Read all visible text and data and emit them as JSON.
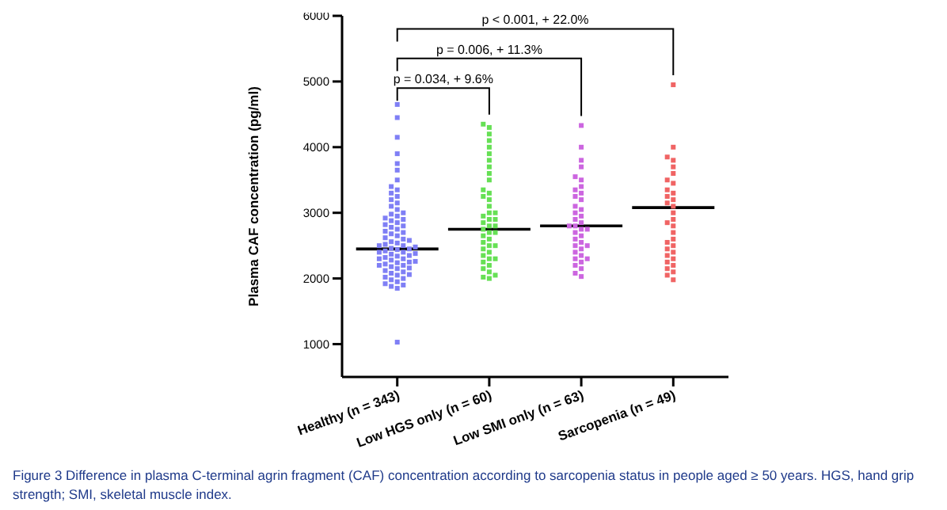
{
  "chart_data": {
    "type": "scatter",
    "ylabel": "Plasma CAF concentration (pg/ml)",
    "categories": [
      "Healthy (n = 343)",
      "Low HGS only (n = 60)",
      "Low SMI only (n = 63)",
      "Sarcopenia (n = 49)"
    ],
    "ylim": [
      500,
      6000
    ],
    "yticks": [
      1000,
      2000,
      3000,
      4000,
      5000,
      6000
    ],
    "marker": "square",
    "series": [
      {
        "color": "#7f7ff5",
        "x": [
          "Healthy (n = 343)",
          "Healthy (n = 343)",
          "Healthy (n = 343)",
          "Healthy (n = 343)",
          "Healthy (n = 343)",
          "Healthy (n = 343)",
          "Healthy (n = 343)",
          "Healthy (n = 343)",
          "Healthy (n = 343)",
          "Healthy (n = 343)",
          "Healthy (n = 343)",
          "Healthy (n = 343)",
          "Healthy (n = 343)",
          "Healthy (n = 343)",
          "Healthy (n = 343)",
          "Healthy (n = 343)",
          "Healthy (n = 343)",
          "Healthy (n = 343)",
          "Healthy (n = 343)",
          "Healthy (n = 343)",
          "Healthy (n = 343)",
          "Healthy (n = 343)",
          "Healthy (n = 343)",
          "Healthy (n = 343)",
          "Healthy (n = 343)",
          "Healthy (n = 343)",
          "Healthy (n = 343)",
          "Healthy (n = 343)",
          "Healthy (n = 343)",
          "Healthy (n = 343)",
          "Healthy (n = 343)",
          "Healthy (n = 343)",
          "Healthy (n = 343)",
          "Healthy (n = 343)",
          "Healthy (n = 343)",
          "Healthy (n = 343)",
          "Healthy (n = 343)",
          "Healthy (n = 343)",
          "Healthy (n = 343)",
          "Healthy (n = 343)",
          "Healthy (n = 343)",
          "Healthy (n = 343)",
          "Healthy (n = 343)",
          "Healthy (n = 343)",
          "Healthy (n = 343)",
          "Healthy (n = 343)",
          "Healthy (n = 343)",
          "Healthy (n = 343)",
          "Healthy (n = 343)",
          "Healthy (n = 343)",
          "Healthy (n = 343)",
          "Healthy (n = 343)",
          "Healthy (n = 343)",
          "Healthy (n = 343)",
          "Healthy (n = 343)",
          "Healthy (n = 343)",
          "Healthy (n = 343)",
          "Healthy (n = 343)",
          "Healthy (n = 343)",
          "Healthy (n = 343)",
          "Healthy (n = 343)",
          "Healthy (n = 343)",
          "Healthy (n = 343)",
          "Healthy (n = 343)",
          "Healthy (n = 343)",
          "Healthy (n = 343)",
          "Healthy (n = 343)",
          "Healthy (n = 343)",
          "Healthy (n = 343)",
          "Healthy (n = 343)",
          "Healthy (n = 343)",
          "Healthy (n = 343)",
          "Healthy (n = 343)",
          "Healthy (n = 343)",
          "Healthy (n = 343)",
          "Healthy (n = 343)"
        ],
        "values": [
          1030,
          1850,
          1880,
          1900,
          1920,
          1950,
          1980,
          2000,
          2020,
          2050,
          2060,
          2080,
          2100,
          2120,
          2150,
          2160,
          2180,
          2200,
          2200,
          2220,
          2240,
          2250,
          2260,
          2280,
          2300,
          2300,
          2320,
          2340,
          2350,
          2370,
          2380,
          2400,
          2400,
          2420,
          2440,
          2450,
          2460,
          2480,
          2500,
          2500,
          2520,
          2540,
          2560,
          2580,
          2600,
          2620,
          2650,
          2680,
          2700,
          2720,
          2750,
          2780,
          2800,
          2820,
          2850,
          2880,
          2900,
          2920,
          2950,
          2980,
          3000,
          3050,
          3100,
          3150,
          3200,
          3250,
          3300,
          3350,
          3400,
          3500,
          3650,
          3750,
          3900,
          4150,
          4450,
          4650
        ]
      },
      {
        "color": "#66e055",
        "x": [
          "Low HGS only (n = 60)",
          "Low HGS only (n = 60)",
          "Low HGS only (n = 60)",
          "Low HGS only (n = 60)",
          "Low HGS only (n = 60)",
          "Low HGS only (n = 60)",
          "Low HGS only (n = 60)",
          "Low HGS only (n = 60)",
          "Low HGS only (n = 60)",
          "Low HGS only (n = 60)",
          "Low HGS only (n = 60)",
          "Low HGS only (n = 60)",
          "Low HGS only (n = 60)",
          "Low HGS only (n = 60)",
          "Low HGS only (n = 60)",
          "Low HGS only (n = 60)",
          "Low HGS only (n = 60)",
          "Low HGS only (n = 60)",
          "Low HGS only (n = 60)",
          "Low HGS only (n = 60)",
          "Low HGS only (n = 60)",
          "Low HGS only (n = 60)",
          "Low HGS only (n = 60)",
          "Low HGS only (n = 60)",
          "Low HGS only (n = 60)",
          "Low HGS only (n = 60)",
          "Low HGS only (n = 60)",
          "Low HGS only (n = 60)",
          "Low HGS only (n = 60)",
          "Low HGS only (n = 60)",
          "Low HGS only (n = 60)",
          "Low HGS only (n = 60)",
          "Low HGS only (n = 60)",
          "Low HGS only (n = 60)",
          "Low HGS only (n = 60)",
          "Low HGS only (n = 60)",
          "Low HGS only (n = 60)",
          "Low HGS only (n = 60)",
          "Low HGS only (n = 60)",
          "Low HGS only (n = 60)",
          "Low HGS only (n = 60)",
          "Low HGS only (n = 60)",
          "Low HGS only (n = 60)"
        ],
        "values": [
          2000,
          2020,
          2050,
          2100,
          2150,
          2200,
          2250,
          2300,
          2300,
          2350,
          2400,
          2450,
          2500,
          2500,
          2550,
          2600,
          2650,
          2700,
          2700,
          2750,
          2800,
          2800,
          2850,
          2900,
          2900,
          2950,
          3000,
          3000,
          3100,
          3200,
          3250,
          3300,
          3350,
          3500,
          3600,
          3700,
          3800,
          3900,
          4000,
          4100,
          4200,
          4300,
          4350
        ]
      },
      {
        "color": "#cc66e0",
        "x": [
          "Low SMI only (n = 63)",
          "Low SMI only (n = 63)",
          "Low SMI only (n = 63)",
          "Low SMI only (n = 63)",
          "Low SMI only (n = 63)",
          "Low SMI only (n = 63)",
          "Low SMI only (n = 63)",
          "Low SMI only (n = 63)",
          "Low SMI only (n = 63)",
          "Low SMI only (n = 63)",
          "Low SMI only (n = 63)",
          "Low SMI only (n = 63)",
          "Low SMI only (n = 63)",
          "Low SMI only (n = 63)",
          "Low SMI only (n = 63)",
          "Low SMI only (n = 63)",
          "Low SMI only (n = 63)",
          "Low SMI only (n = 63)",
          "Low SMI only (n = 63)",
          "Low SMI only (n = 63)",
          "Low SMI only (n = 63)",
          "Low SMI only (n = 63)",
          "Low SMI only (n = 63)",
          "Low SMI only (n = 63)",
          "Low SMI only (n = 63)",
          "Low SMI only (n = 63)",
          "Low SMI only (n = 63)",
          "Low SMI only (n = 63)",
          "Low SMI only (n = 63)",
          "Low SMI only (n = 63)",
          "Low SMI only (n = 63)",
          "Low SMI only (n = 63)",
          "Low SMI only (n = 63)",
          "Low SMI only (n = 63)",
          "Low SMI only (n = 63)",
          "Low SMI only (n = 63)",
          "Low SMI only (n = 63)"
        ],
        "values": [
          2030,
          2080,
          2150,
          2200,
          2250,
          2300,
          2300,
          2350,
          2400,
          2450,
          2500,
          2500,
          2550,
          2600,
          2650,
          2700,
          2750,
          2750,
          2800,
          2800,
          2850,
          2900,
          2950,
          3000,
          3050,
          3100,
          3200,
          3250,
          3300,
          3350,
          3400,
          3500,
          3550,
          3700,
          3800,
          4000,
          4330
        ]
      },
      {
        "color": "#f06464",
        "x": [
          "Sarcopenia (n = 49)",
          "Sarcopenia (n = 49)",
          "Sarcopenia (n = 49)",
          "Sarcopenia (n = 49)",
          "Sarcopenia (n = 49)",
          "Sarcopenia (n = 49)",
          "Sarcopenia (n = 49)",
          "Sarcopenia (n = 49)",
          "Sarcopenia (n = 49)",
          "Sarcopenia (n = 49)",
          "Sarcopenia (n = 49)",
          "Sarcopenia (n = 49)",
          "Sarcopenia (n = 49)",
          "Sarcopenia (n = 49)",
          "Sarcopenia (n = 49)",
          "Sarcopenia (n = 49)",
          "Sarcopenia (n = 49)",
          "Sarcopenia (n = 49)",
          "Sarcopenia (n = 49)",
          "Sarcopenia (n = 49)",
          "Sarcopenia (n = 49)",
          "Sarcopenia (n = 49)",
          "Sarcopenia (n = 49)",
          "Sarcopenia (n = 49)",
          "Sarcopenia (n = 49)",
          "Sarcopenia (n = 49)",
          "Sarcopenia (n = 49)",
          "Sarcopenia (n = 49)",
          "Sarcopenia (n = 49)",
          "Sarcopenia (n = 49)",
          "Sarcopenia (n = 49)",
          "Sarcopenia (n = 49)"
        ],
        "values": [
          1980,
          2050,
          2100,
          2150,
          2200,
          2250,
          2300,
          2350,
          2400,
          2450,
          2500,
          2550,
          2600,
          2700,
          2800,
          2850,
          2900,
          3000,
          3100,
          3150,
          3200,
          3250,
          3300,
          3350,
          3450,
          3500,
          3600,
          3700,
          3800,
          3850,
          4000,
          4950
        ]
      },
      {
        "type": "box",
        "color": "#000000",
        "boxes": [
          {
            "low": 2450,
            "q1": 2450,
            "median": 2450,
            "q3": 2450,
            "high": 2450
          },
          {
            "low": 2750,
            "q1": 2750,
            "median": 2750,
            "q3": 2750,
            "high": 2750
          },
          {
            "low": 2800,
            "q1": 2800,
            "median": 2800,
            "q3": 2800,
            "high": 2800
          },
          {
            "low": 3080,
            "q1": 3080,
            "median": 3080,
            "q3": 3080,
            "high": 3080
          }
        ]
      }
    ],
    "annotations": [
      "p = 0.034, + 9.6%",
      "p = 0.006, + 11.3%",
      "p < 0.001, + 22.0%",
      "Figure 3   Difference in plasma C-terminal agrin fragment (CAF) concentration according to sarcopenia status in people aged ≥ 50 years. HGS, hand grip strength; SMI, skeletal muscle index."
    ]
  }
}
